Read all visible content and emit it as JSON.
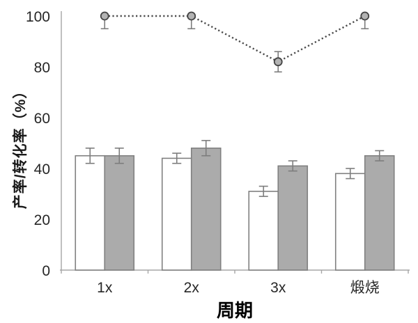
{
  "chart_data": {
    "type": "bar",
    "subtype": "grouped-bars-with-overlaid-dotted-line",
    "title": "",
    "xlabel": "周期",
    "ylabel": "产率/转化率（%）",
    "categories": [
      "1x",
      "2x",
      "3x",
      "煅烧"
    ],
    "y_ticks": [
      0,
      20,
      40,
      60,
      80,
      100
    ],
    "ylim": [
      0,
      100
    ],
    "grid": false,
    "legend": "none",
    "colors": {
      "white_bar_fill": "#ffffff",
      "gray_bar_fill": "#ababab",
      "bar_stroke": "#808080",
      "error_bar": "#7d7d7d",
      "line_stroke": "#4a4a4a",
      "marker_fill": "#b3b3b3",
      "marker_stroke": "#444444",
      "axis_line": "#a6a6a6",
      "tick_text": "#262626"
    },
    "series": [
      {
        "name": "white-bars",
        "type": "bar",
        "values": [
          45,
          44,
          31,
          38
        ],
        "errors": [
          3,
          2,
          2,
          2
        ]
      },
      {
        "name": "gray-bars",
        "type": "bar",
        "values": [
          45,
          48,
          41,
          45
        ],
        "errors": [
          3,
          3,
          2,
          2
        ]
      },
      {
        "name": "dotted-line",
        "type": "line",
        "values": [
          100,
          100,
          82,
          100
        ],
        "errors": [
          5,
          5,
          4,
          5
        ]
      }
    ]
  }
}
